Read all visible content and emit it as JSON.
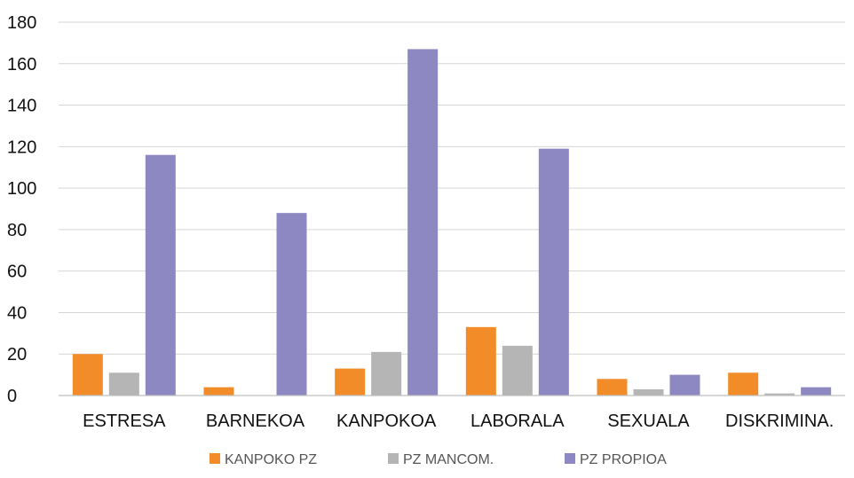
{
  "chart_data": {
    "type": "bar",
    "title": "",
    "xlabel": "",
    "ylabel": "",
    "categories": [
      "ESTRESA",
      "BARNEKOA",
      "KANPOKOA",
      "LABORALA",
      "SEXUALA",
      "DISKRIMINA."
    ],
    "series": [
      {
        "name": "KANPOKO PZ",
        "color": "#F28C28",
        "values": [
          20,
          4,
          13,
          33,
          8,
          11
        ]
      },
      {
        "name": "PZ MANCOM.",
        "color": "#B5B5B5",
        "values": [
          11,
          0,
          21,
          24,
          3,
          1
        ]
      },
      {
        "name": "PZ PROPIOA",
        "color": "#8D87C2",
        "values": [
          116,
          88,
          167,
          119,
          10,
          4
        ]
      }
    ],
    "ylim": [
      0,
      180
    ],
    "yticks": [
      0,
      20,
      40,
      60,
      80,
      100,
      120,
      140,
      160,
      180
    ],
    "grid": true,
    "legend_position": "bottom-center"
  }
}
